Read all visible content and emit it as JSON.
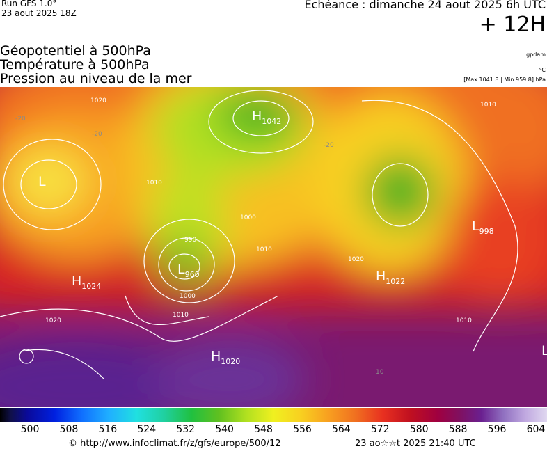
{
  "header": {
    "run": "Run GFS 1.0°",
    "date": "23 aout 2025 18Z",
    "echeance": "Echéance : dimanche 24 aout 2025 6h UTC",
    "lead": "+ 12H"
  },
  "titles": [
    "Géopotentiel à 500hPa",
    "Température à 500hPa",
    "Pression au niveau de la mer"
  ],
  "units": [
    "gpdam",
    "°C",
    "[Max 1041.8 | Min 959.8] hPa"
  ],
  "map": {
    "centers": [
      {
        "letter": "H",
        "value": "1042"
      },
      {
        "letter": "L",
        "value": "960"
      },
      {
        "letter": "H",
        "value": "1024"
      },
      {
        "letter": "H",
        "value": "1020"
      },
      {
        "letter": "H",
        "value": "1022"
      },
      {
        "letter": "L",
        "value": "998"
      },
      {
        "letter": "L",
        "value": null
      },
      {
        "letter": "L",
        "value": null
      }
    ],
    "contour_labels": [
      "1020",
      "1010",
      "1000",
      "990",
      "1010",
      "1010",
      "1010",
      "1020",
      "1000",
      "1010",
      "1020"
    ],
    "temperature_labels": [
      "-20",
      "-20",
      "-20",
      "10"
    ]
  },
  "colorbar": {
    "labels": [
      500,
      508,
      516,
      524,
      532,
      540,
      548,
      556,
      564,
      572,
      580,
      588,
      596,
      604
    ]
  },
  "footer": {
    "source": "© http://www.infoclimat.fr/z/gfs/europe/500/12",
    "generated": "23 ao☆☆t 2025 21:40 UTC"
  }
}
